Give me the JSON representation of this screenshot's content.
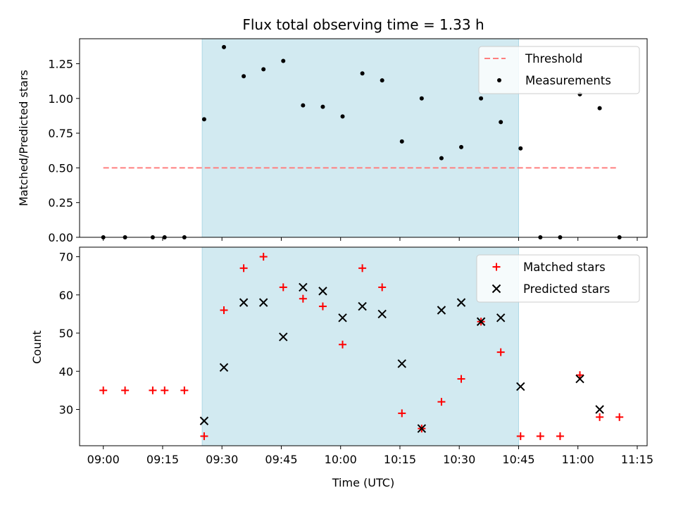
{
  "chart_data": {
    "type": "scatter",
    "title": "Flux total observing time = 1.33 h",
    "xlabel": "Time (UTC)",
    "x_ticks": [
      "09:00",
      "09:15",
      "09:30",
      "09:45",
      "10:00",
      "10:15",
      "10:30",
      "10:45",
      "11:00",
      "11:15"
    ],
    "x_tick_minutes": [
      0,
      15,
      30,
      45,
      60,
      75,
      90,
      105,
      120,
      135
    ],
    "xlim_minutes": [
      -6,
      137.5
    ],
    "observing_window_minutes": [
      25,
      105
    ],
    "colors": {
      "window_fill": "#add8e6",
      "threshold": "#ff7f7f",
      "matched": "#ff0000",
      "predicted": "#000000",
      "measurement": "#000000"
    },
    "ratio_panel": {
      "ylabel": "Matched/Predicted stars",
      "ylim": [
        0,
        1.43
      ],
      "yticks": [
        0.0,
        0.25,
        0.5,
        0.75,
        1.0,
        1.25
      ],
      "ytick_labels": [
        "0.00",
        "0.25",
        "0.50",
        "0.75",
        "1.00",
        "1.25"
      ],
      "threshold": {
        "label": "Threshold",
        "value": 0.5,
        "x_range": [
          0,
          130
        ]
      },
      "measurements": {
        "label": "Measurements",
        "points": [
          {
            "t": 0,
            "y": 0
          },
          {
            "t": 5.5,
            "y": 0
          },
          {
            "t": 12.5,
            "y": 0
          },
          {
            "t": 15.5,
            "y": 0
          },
          {
            "t": 20.5,
            "y": 0
          },
          {
            "t": 25.5,
            "y": 0.85
          },
          {
            "t": 30.5,
            "y": 1.37
          },
          {
            "t": 35.5,
            "y": 1.16
          },
          {
            "t": 40.5,
            "y": 1.21
          },
          {
            "t": 45.5,
            "y": 1.27
          },
          {
            "t": 50.5,
            "y": 0.95
          },
          {
            "t": 55.5,
            "y": 0.94
          },
          {
            "t": 60.5,
            "y": 0.87
          },
          {
            "t": 65.5,
            "y": 1.18
          },
          {
            "t": 70.5,
            "y": 1.13
          },
          {
            "t": 75.5,
            "y": 0.69
          },
          {
            "t": 80.5,
            "y": 1.0
          },
          {
            "t": 85.5,
            "y": 0.57
          },
          {
            "t": 90.5,
            "y": 0.65
          },
          {
            "t": 95.5,
            "y": 1.0
          },
          {
            "t": 100.5,
            "y": 0.83
          },
          {
            "t": 105.5,
            "y": 0.64
          },
          {
            "t": 110.5,
            "y": 0
          },
          {
            "t": 115.5,
            "y": 0
          },
          {
            "t": 120.5,
            "y": 1.03
          },
          {
            "t": 125.5,
            "y": 0.93
          },
          {
            "t": 130.5,
            "y": 0
          }
        ]
      }
    },
    "count_panel": {
      "ylabel": "Count",
      "ylim": [
        20.5,
        72.5
      ],
      "yticks": [
        30,
        40,
        50,
        60,
        70
      ],
      "ytick_labels": [
        "30",
        "40",
        "50",
        "60",
        "70"
      ],
      "matched": {
        "label": "Matched stars",
        "points": [
          {
            "t": 0,
            "y": 35
          },
          {
            "t": 5.5,
            "y": 35
          },
          {
            "t": 12.5,
            "y": 35
          },
          {
            "t": 15.5,
            "y": 35
          },
          {
            "t": 20.5,
            "y": 35
          },
          {
            "t": 25.5,
            "y": 23
          },
          {
            "t": 30.5,
            "y": 56
          },
          {
            "t": 35.5,
            "y": 67
          },
          {
            "t": 40.5,
            "y": 70
          },
          {
            "t": 45.5,
            "y": 62
          },
          {
            "t": 50.5,
            "y": 59
          },
          {
            "t": 55.5,
            "y": 57
          },
          {
            "t": 60.5,
            "y": 47
          },
          {
            "t": 65.5,
            "y": 67
          },
          {
            "t": 70.5,
            "y": 62
          },
          {
            "t": 75.5,
            "y": 29
          },
          {
            "t": 80.5,
            "y": 25
          },
          {
            "t": 85.5,
            "y": 32
          },
          {
            "t": 90.5,
            "y": 38
          },
          {
            "t": 95.5,
            "y": 53
          },
          {
            "t": 100.5,
            "y": 45
          },
          {
            "t": 105.5,
            "y": 23
          },
          {
            "t": 110.5,
            "y": 23
          },
          {
            "t": 115.5,
            "y": 23
          },
          {
            "t": 120.5,
            "y": 39
          },
          {
            "t": 125.5,
            "y": 28
          },
          {
            "t": 130.5,
            "y": 28
          }
        ]
      },
      "predicted": {
        "label": "Predicted stars",
        "points": [
          {
            "t": 25.5,
            "y": 27
          },
          {
            "t": 30.5,
            "y": 41
          },
          {
            "t": 35.5,
            "y": 58
          },
          {
            "t": 40.5,
            "y": 58
          },
          {
            "t": 45.5,
            "y": 49
          },
          {
            "t": 50.5,
            "y": 62
          },
          {
            "t": 55.5,
            "y": 61
          },
          {
            "t": 60.5,
            "y": 54
          },
          {
            "t": 65.5,
            "y": 57
          },
          {
            "t": 70.5,
            "y": 55
          },
          {
            "t": 75.5,
            "y": 42
          },
          {
            "t": 80.5,
            "y": 25
          },
          {
            "t": 85.5,
            "y": 56
          },
          {
            "t": 90.5,
            "y": 58
          },
          {
            "t": 95.5,
            "y": 53
          },
          {
            "t": 100.5,
            "y": 54
          },
          {
            "t": 105.5,
            "y": 36
          },
          {
            "t": 120.5,
            "y": 38
          },
          {
            "t": 125.5,
            "y": 30
          }
        ]
      }
    }
  }
}
